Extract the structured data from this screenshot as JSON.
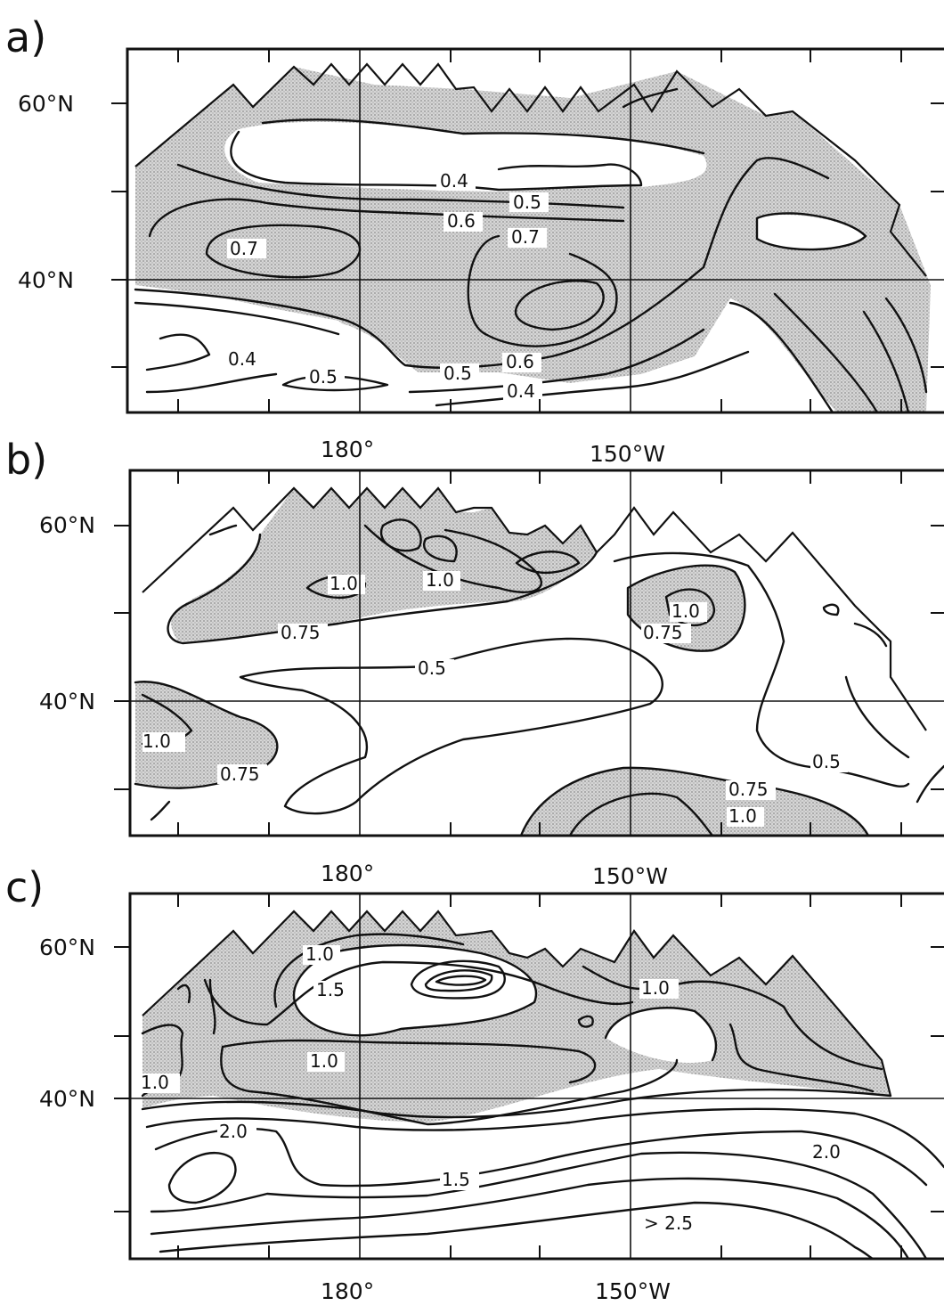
{
  "figure": {
    "panels": [
      {
        "id": "a",
        "label": "a)",
        "lat_labels": [
          "60°N",
          "40°N"
        ],
        "lon_labels": [
          "180°",
          "150°W"
        ],
        "contour_labels": [
          "0.4",
          "0.5",
          "0.6",
          "0.7",
          "0.7",
          "0.6",
          "0.5",
          "0.4",
          "0.4",
          "0.5"
        ]
      },
      {
        "id": "b",
        "label": "b)",
        "lat_labels": [
          "60°N",
          "40°N"
        ],
        "lon_labels": [
          "180°",
          "150°W"
        ],
        "contour_labels": [
          "1.0",
          "1.0",
          "0.75",
          "0.5",
          "1.0",
          "0.75",
          "1.0",
          "0.75",
          "0.5",
          "0.75",
          "1.0"
        ]
      },
      {
        "id": "c",
        "label": "c)",
        "lat_labels": [
          "60°N",
          "40°N"
        ],
        "lon_labels": [
          "180°",
          "150°W"
        ],
        "contour_labels": [
          "1.0",
          "1.5",
          "1.0",
          "1.0",
          "1.0",
          "2.0",
          "1.5",
          "2.0"
        ],
        "annotation": "> 2.5"
      }
    ]
  },
  "colors": {
    "line": "#111111",
    "shading": "#b8b8b8",
    "background": "#ffffff"
  }
}
